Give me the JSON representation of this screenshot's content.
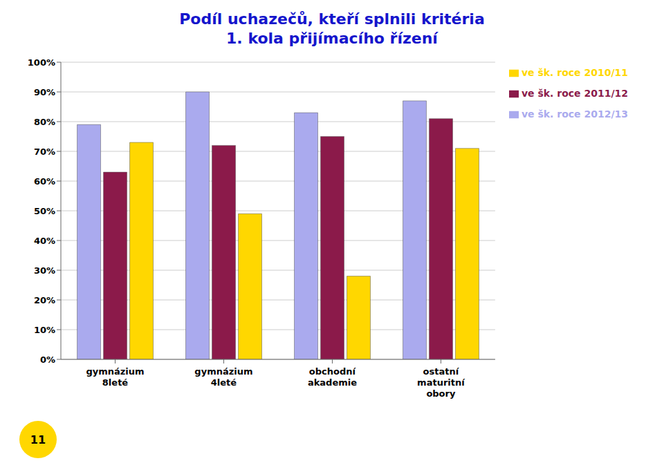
{
  "chart_data": {
    "type": "bar",
    "title": "Podíl uchazečů, kteří splnili kritéria\n1. kola přijímacího řízení",
    "categories": [
      "gymnázium\n8leté",
      "gymnázium\n4leté",
      "obchodní\nakademie",
      "ostatní\nmaturitní\nobory"
    ],
    "series": [
      {
        "name": "ve šk. roce 2012/13",
        "color": "#AAAAEE",
        "values": [
          0.79,
          0.9,
          0.83,
          0.87
        ]
      },
      {
        "name": "ve šk. roce 2011/12",
        "color": "#8B1A4A",
        "values": [
          0.63,
          0.72,
          0.75,
          0.81
        ]
      },
      {
        "name": "ve šk. roce 2010/11",
        "color": "#FFD700",
        "values": [
          0.73,
          0.49,
          0.28,
          0.71
        ]
      }
    ],
    "ylim": [
      0.0,
      1.0
    ],
    "yticks": [
      {
        "value": 0.0,
        "label": "0%"
      },
      {
        "value": 0.1,
        "label": "10%"
      },
      {
        "value": 0.2,
        "label": "20%"
      },
      {
        "value": 0.3,
        "label": "30%"
      },
      {
        "value": 0.4,
        "label": "40%"
      },
      {
        "value": 0.5,
        "label": "50%"
      },
      {
        "value": 0.6,
        "label": "60%"
      },
      {
        "value": 0.7,
        "label": "70%"
      },
      {
        "value": 0.8,
        "label": "80%"
      },
      {
        "value": 0.9,
        "label": "90%"
      },
      {
        "value": 1.0,
        "label": "100%"
      }
    ],
    "grid": true,
    "legend": "right",
    "annotations": [
      "11"
    ]
  }
}
